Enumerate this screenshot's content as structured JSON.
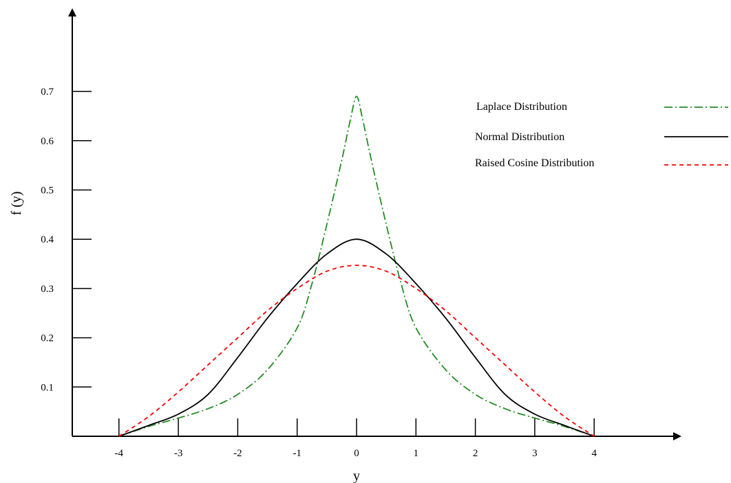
{
  "chart_data": {
    "type": "line",
    "xlabel": "y",
    "ylabel": "f (y)",
    "xlim": [
      -4,
      4
    ],
    "ylim": [
      0,
      0.7
    ],
    "x_ticks": [
      "-4",
      "-3",
      "-2",
      "-1",
      "0",
      "1",
      "2",
      "3",
      "4"
    ],
    "y_ticks": [
      "0.1",
      "0.2",
      "0.3",
      "0.4",
      "0.5",
      "0.6",
      "0.7"
    ],
    "legend_position": "top-right",
    "grid": false,
    "series": [
      {
        "name": "Laplace Distribution",
        "color": "#228B22",
        "style": "dash-dot",
        "x": [
          -4,
          -3.5,
          -3,
          -2.5,
          -2,
          -1.5,
          -1,
          -0.75,
          -0.5,
          -0.25,
          -0.1,
          0,
          0.1,
          0.25,
          0.5,
          0.75,
          1,
          1.5,
          2,
          2.5,
          3,
          3.5,
          4
        ],
        "y": [
          0,
          0.02,
          0.037,
          0.056,
          0.085,
          0.135,
          0.22,
          0.31,
          0.43,
          0.56,
          0.645,
          0.69,
          0.645,
          0.56,
          0.43,
          0.31,
          0.22,
          0.135,
          0.085,
          0.056,
          0.037,
          0.02,
          0
        ]
      },
      {
        "name": "Normal Distribution",
        "color": "#000000",
        "style": "solid",
        "x": [
          -4,
          -3.5,
          -3,
          -2.5,
          -2,
          -1.5,
          -1,
          -0.5,
          0,
          0.5,
          1,
          1.5,
          2,
          2.5,
          3,
          3.5,
          4
        ],
        "y": [
          0,
          0.022,
          0.045,
          0.085,
          0.16,
          0.24,
          0.31,
          0.37,
          0.4,
          0.37,
          0.31,
          0.24,
          0.16,
          0.085,
          0.045,
          0.022,
          0
        ]
      },
      {
        "name": "Raised Cosine Distribution",
        "color": "#FF0000",
        "style": "dashed",
        "x": [
          -4,
          -3.5,
          -3,
          -2.5,
          -2,
          -1.5,
          -1,
          -0.5,
          0,
          0.5,
          1,
          1.5,
          2,
          2.5,
          3,
          3.5,
          4
        ],
        "y": [
          0,
          0.04,
          0.09,
          0.145,
          0.2,
          0.255,
          0.3,
          0.335,
          0.347,
          0.335,
          0.3,
          0.255,
          0.2,
          0.145,
          0.09,
          0.04,
          0
        ]
      }
    ]
  }
}
